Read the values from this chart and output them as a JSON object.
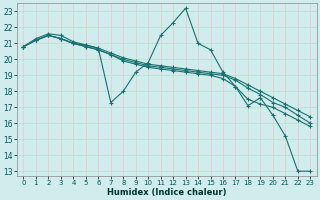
{
  "xlabel": "Humidex (Indice chaleur)",
  "xlim": [
    -0.5,
    23.5
  ],
  "ylim": [
    12.7,
    23.5
  ],
  "yticks": [
    13,
    14,
    15,
    16,
    17,
    18,
    19,
    20,
    21,
    22,
    23
  ],
  "xticks": [
    0,
    1,
    2,
    3,
    4,
    5,
    6,
    7,
    8,
    9,
    10,
    11,
    12,
    13,
    14,
    15,
    16,
    17,
    18,
    19,
    20,
    21,
    22,
    23
  ],
  "background_color": "#d0ecec",
  "grid_color": "#e8c8c8",
  "line_color": "#1a7070",
  "lines": [
    {
      "x": [
        0,
        1,
        2,
        3,
        4,
        5,
        6,
        7,
        8,
        9,
        10,
        11,
        12,
        13,
        14,
        15,
        16,
        17,
        18,
        19,
        20,
        21,
        22,
        23
      ],
      "y": [
        20.8,
        21.3,
        21.6,
        21.5,
        21.1,
        20.9,
        20.7,
        17.3,
        18.0,
        19.2,
        19.8,
        21.5,
        22.3,
        23.2,
        21.0,
        20.6,
        19.2,
        18.3,
        17.1,
        17.6,
        16.5,
        15.2,
        13.0,
        13.0
      ]
    },
    {
      "x": [
        0,
        1,
        2,
        3,
        4,
        5,
        6,
        7,
        8,
        9,
        10,
        11,
        12,
        13,
        14,
        15,
        16,
        17,
        18,
        19,
        20,
        21,
        22,
        23
      ],
      "y": [
        20.8,
        21.2,
        21.5,
        21.3,
        21.0,
        20.8,
        20.6,
        20.3,
        19.9,
        19.7,
        19.5,
        19.4,
        19.3,
        19.2,
        19.1,
        19.0,
        18.8,
        18.3,
        17.5,
        17.2,
        17.0,
        16.6,
        16.2,
        15.8
      ]
    },
    {
      "x": [
        0,
        1,
        2,
        3,
        4,
        5,
        6,
        7,
        8,
        9,
        10,
        11,
        12,
        13,
        14,
        15,
        16,
        17,
        18,
        19,
        20,
        21,
        22,
        23
      ],
      "y": [
        20.8,
        21.2,
        21.5,
        21.3,
        21.0,
        20.8,
        20.6,
        20.3,
        20.0,
        19.8,
        19.6,
        19.5,
        19.4,
        19.3,
        19.2,
        19.1,
        19.0,
        18.7,
        18.2,
        17.8,
        17.3,
        17.0,
        16.5,
        16.0
      ]
    },
    {
      "x": [
        0,
        1,
        2,
        3,
        4,
        5,
        6,
        7,
        8,
        9,
        10,
        11,
        12,
        13,
        14,
        15,
        16,
        17,
        18,
        19,
        20,
        21,
        22,
        23
      ],
      "y": [
        20.8,
        21.2,
        21.5,
        21.3,
        21.0,
        20.9,
        20.7,
        20.4,
        20.1,
        19.9,
        19.7,
        19.6,
        19.5,
        19.4,
        19.3,
        19.2,
        19.1,
        18.8,
        18.4,
        18.0,
        17.6,
        17.2,
        16.8,
        16.4
      ]
    }
  ]
}
